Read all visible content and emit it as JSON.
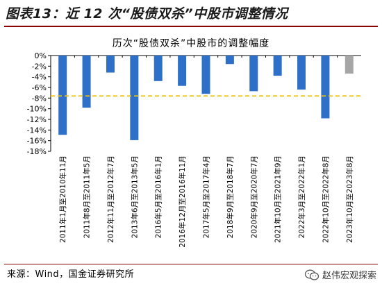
{
  "figure_title": "图表13：近 12 次“股债双杀”中股市调整情况",
  "source_note": "来源：Wind，国金证券研究所",
  "watermark_text": "赵伟宏观探索",
  "colors": {
    "bar": "#2e6fc7",
    "bar_last": "#a6a6a6",
    "reference_line": "#f2c200",
    "title_rule": "#8c0000"
  },
  "chart_data": {
    "type": "bar",
    "title": "历次“股债双杀”中股市的调整幅度",
    "xlabel": "",
    "ylabel": "",
    "categories": [
      "2011年1月至2010年11月",
      "2011年8月至2011年5月",
      "2012年11月至2012年7月",
      "2013年6月至2013年5月",
      "2016年5月至2016年1月",
      "2016年12月至2016年11月",
      "2017年5月至2017年4月",
      "2018年9月至2018年7月",
      "2020年9月至2020年7月",
      "2021年10月至2021年9月",
      "2022年3月至2022年1月",
      "2022年10月至2022年8月",
      "2023年10月至2023年8月"
    ],
    "values": [
      -14.9,
      -9.8,
      -3.2,
      -15.9,
      -4.8,
      -5.7,
      -7.2,
      -1.6,
      -6.7,
      -3.8,
      -6.4,
      -11.8,
      -3.4
    ],
    "highlight_last": true,
    "reference_line": -7.6,
    "ylim": [
      -18,
      0
    ],
    "yticks": [
      0,
      -2,
      -4,
      -6,
      -8,
      -10,
      -12,
      -14,
      -16,
      -18
    ],
    "ytick_labels": [
      "0%",
      "-2%",
      "-4%",
      "-6%",
      "-8%",
      "-10%",
      "-12%",
      "-14%",
      "-16%",
      "-18%"
    ],
    "grid": false,
    "legend": "none"
  }
}
